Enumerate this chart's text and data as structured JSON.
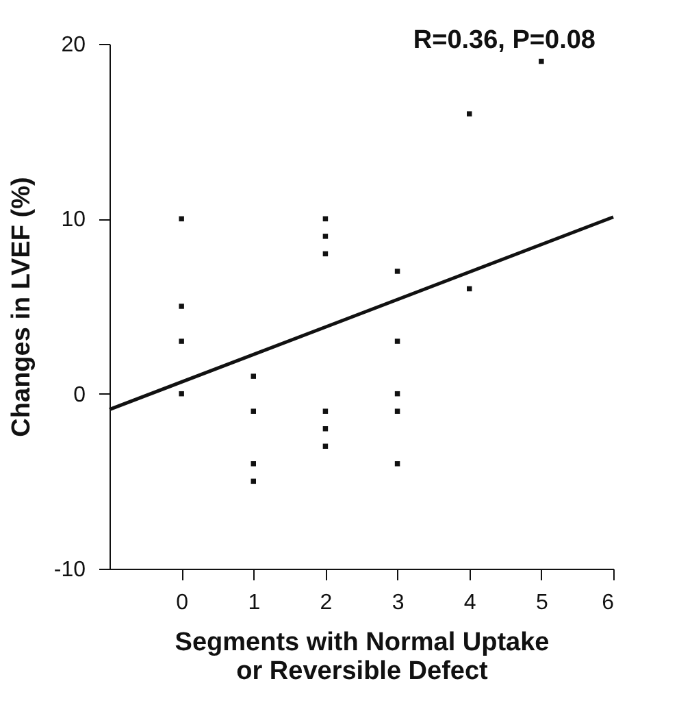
{
  "chart_data": {
    "type": "scatter",
    "xlabel": "Segments with Normal Uptake\nor Reversible Defect",
    "ylabel": "Changes in LVEF (%)",
    "annotations": [
      "R=0.36, P=0.08"
    ],
    "xlim": [
      -1,
      6
    ],
    "xticks": [
      0,
      1,
      2,
      3,
      4,
      5,
      6
    ],
    "ylim": [
      -10,
      20
    ],
    "yticks": [
      -10,
      0,
      10,
      20
    ],
    "grid": false,
    "series": [
      {
        "color": "#111111",
        "marker": "square",
        "x": [
          0,
          0,
          0,
          0,
          1,
          1,
          1,
          1,
          2,
          2,
          2,
          2,
          2,
          2,
          3,
          3,
          3,
          3,
          3,
          4,
          4,
          5
        ],
        "values": [
          10,
          5,
          3,
          0,
          1,
          -1,
          -4,
          -5,
          10,
          9,
          8,
          -1,
          -2,
          -3,
          7,
          3,
          0,
          -1,
          -4,
          16,
          6,
          19
        ]
      },
      {
        "type": "line",
        "color": "#111111",
        "x": [
          -1,
          6
        ],
        "values": [
          -0.9,
          10.1
        ],
        "line_style": "solid",
        "marker": "none"
      }
    ]
  }
}
